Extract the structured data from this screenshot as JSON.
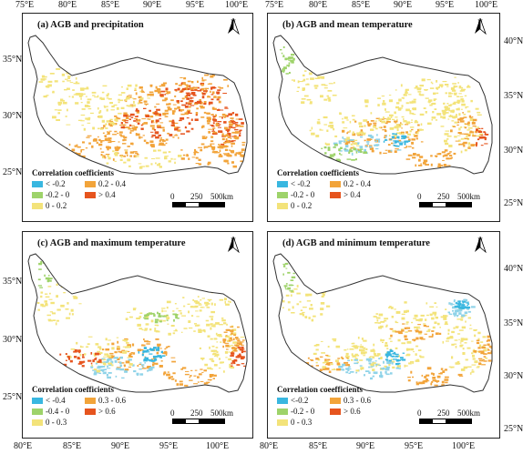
{
  "top_lon_labels_left": [
    "75°E",
    "80°E",
    "85°E",
    "90°E",
    "95°E",
    "100°E"
  ],
  "top_lon_labels_right": [
    "75°E",
    "80°E",
    "85°E",
    "90°E",
    "95°E",
    "100°E"
  ],
  "bottom_lon_labels_left": [
    "80°E",
    "85°E",
    "90°E",
    "95°E",
    "100°E"
  ],
  "bottom_lon_labels_right": [
    "80°E",
    "85°E",
    "90°E",
    "95°E",
    "100°E"
  ],
  "left_lat_labels_top": [
    "35°N",
    "30°N",
    "25°N"
  ],
  "left_lat_labels_bottom": [
    "35°N",
    "30°N",
    "25°N"
  ],
  "right_lat_labels_top": [
    "40°N",
    "35°N",
    "30°N",
    "25°N"
  ],
  "right_lat_labels_bottom": [
    "40°N",
    "35°N",
    "30°N",
    "25°N"
  ],
  "colors": {
    "dark_blue": "#39b7e0",
    "light_blue": "#8fd3e8",
    "green": "#9ed36a",
    "yellow": "#f3e37a",
    "orange": "#f2a43a",
    "red": "#e6541e",
    "boundary": "#333333"
  },
  "panels": [
    {
      "title": "(a) AGB and precipitation",
      "legend_title": "Correlation coefficients",
      "legend": [
        {
          "label": "< -0.2",
          "color": "#39b7e0"
        },
        {
          "label": "0.2 - 0.4",
          "color": "#f2a43a"
        },
        {
          "label": "-0.2 - 0",
          "color": "#9ed36a"
        },
        {
          "label": "> 0.4",
          "color": "#e6541e"
        },
        {
          "label": "0 - 0.2",
          "color": "#f3e37a"
        }
      ],
      "north": "N",
      "scale": {
        "z": "0",
        "m": "250",
        "e": "500km"
      }
    },
    {
      "title": "(b) AGB and mean temperature",
      "legend_title": "Correlation coefficients",
      "legend": [
        {
          "label": "< -0.2",
          "color": "#39b7e0"
        },
        {
          "label": "0.2 - 0.4",
          "color": "#f2a43a"
        },
        {
          "label": "-0.2 - 0",
          "color": "#9ed36a"
        },
        {
          "label": "> 0.4",
          "color": "#e6541e"
        },
        {
          "label": "0 - 0.2",
          "color": "#f3e37a"
        }
      ],
      "north": "N",
      "scale": {
        "z": "0",
        "m": "250",
        "e": "500km"
      }
    },
    {
      "title": "(c) AGB and maximum temperature",
      "legend_title": "Correlation coefficients",
      "legend": [
        {
          "label": "< -0.4",
          "color": "#39b7e0"
        },
        {
          "label": "0.3 - 0.6",
          "color": "#f2a43a"
        },
        {
          "label": "-0.4 - 0",
          "color": "#9ed36a"
        },
        {
          "label": "> 0.6",
          "color": "#e6541e"
        },
        {
          "label": "0 - 0.3",
          "color": "#f3e37a"
        }
      ],
      "north": "N",
      "scale": {
        "z": "0",
        "m": "250",
        "e": "500km"
      }
    },
    {
      "title": "(d) AGB and minimum temperature",
      "legend_title": "Correlation coeefficients",
      "legend": [
        {
          "label": "<-0.2",
          "color": "#39b7e0"
        },
        {
          "label": "0.3 - 0.6",
          "color": "#f2a43a"
        },
        {
          "label": "-0.2 - 0",
          "color": "#9ed36a"
        },
        {
          "label": "> 0.6",
          "color": "#e6541e"
        },
        {
          "label": "0 - 0.3",
          "color": "#f3e37a"
        }
      ],
      "north": "N",
      "scale": {
        "z": "0",
        "m": "250",
        "e": "500km"
      }
    }
  ]
}
